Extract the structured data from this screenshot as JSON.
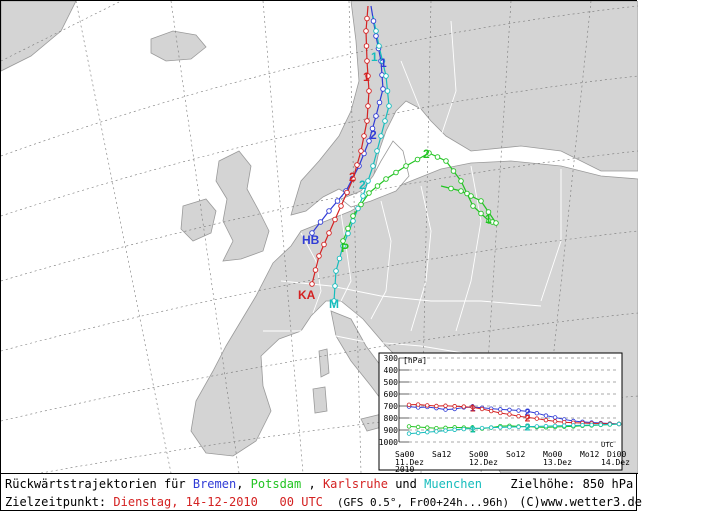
{
  "caption": {
    "title_prefix": "Rückwärtstrajektorien für",
    "cities": [
      {
        "name": "Bremen",
        "color": "#2f3bd6"
      },
      {
        "name": "Potsdam",
        "color": "#22c422"
      },
      {
        "name": "Karlsruhe",
        "color": "#d42222"
      },
      {
        "name": "Muenchen",
        "color": "#15bcbc"
      }
    ],
    "and_word": "und",
    "target_height": "Zielhöhe: 850 hPa",
    "target_time_label": "Zielzeitpunkt:",
    "target_time_value": "Dienstag, 14-12-2010   00 UTC",
    "model_info": "(GFS 0.5°, Fr00+24h...96h)",
    "copyright": "(C)www.wetter3.de"
  },
  "map_labels": {
    "bremen": "HB",
    "potsdam": "P",
    "karlsruhe": "KA",
    "muenchen": "M",
    "day_marker_1": "1",
    "day_marker_2": "2"
  },
  "chart_data": {
    "type": "line",
    "ylabel": "[hPa]",
    "ylim": [
      1000,
      300
    ],
    "yticks": [
      300,
      400,
      500,
      600,
      700,
      800,
      900,
      1000
    ],
    "xticks": [
      "Sa00",
      "Sa12",
      "So00",
      "So12",
      "Mo00",
      "Mo12",
      "Di00"
    ],
    "xdates": [
      "11.Dez\n2010",
      "12.Dez",
      "13.Dez",
      "14.Dez"
    ],
    "xunit": "UTC",
    "series": [
      {
        "name": "Bremen",
        "color": "#2f3bd6",
        "values": [
          705,
          712,
          708,
          718,
          730,
          725,
          712,
          708,
          715,
          722,
          728,
          732,
          738,
          745,
          760,
          780,
          795,
          812,
          825,
          832,
          838,
          842,
          846,
          850
        ]
      },
      {
        "name": "Potsdam",
        "color": "#22c422",
        "values": [
          870,
          875,
          880,
          885,
          882,
          878,
          880,
          885,
          888,
          880,
          868,
          865,
          870,
          872,
          876,
          878,
          875,
          872,
          870,
          865,
          862,
          858,
          855,
          850
        ]
      },
      {
        "name": "Karlsruhe",
        "color": "#d42222",
        "values": [
          690,
          688,
          695,
          700,
          698,
          702,
          705,
          712,
          725,
          742,
          758,
          770,
          785,
          795,
          805,
          818,
          828,
          835,
          840,
          842,
          845,
          846,
          848,
          850
        ]
      },
      {
        "name": "Muenchen",
        "color": "#15bcbc",
        "values": [
          930,
          925,
          918,
          912,
          905,
          898,
          892,
          888,
          884,
          880,
          878,
          876,
          874,
          872,
          870,
          868,
          866,
          864,
          862,
          860,
          858,
          856,
          853,
          850
        ]
      }
    ]
  }
}
